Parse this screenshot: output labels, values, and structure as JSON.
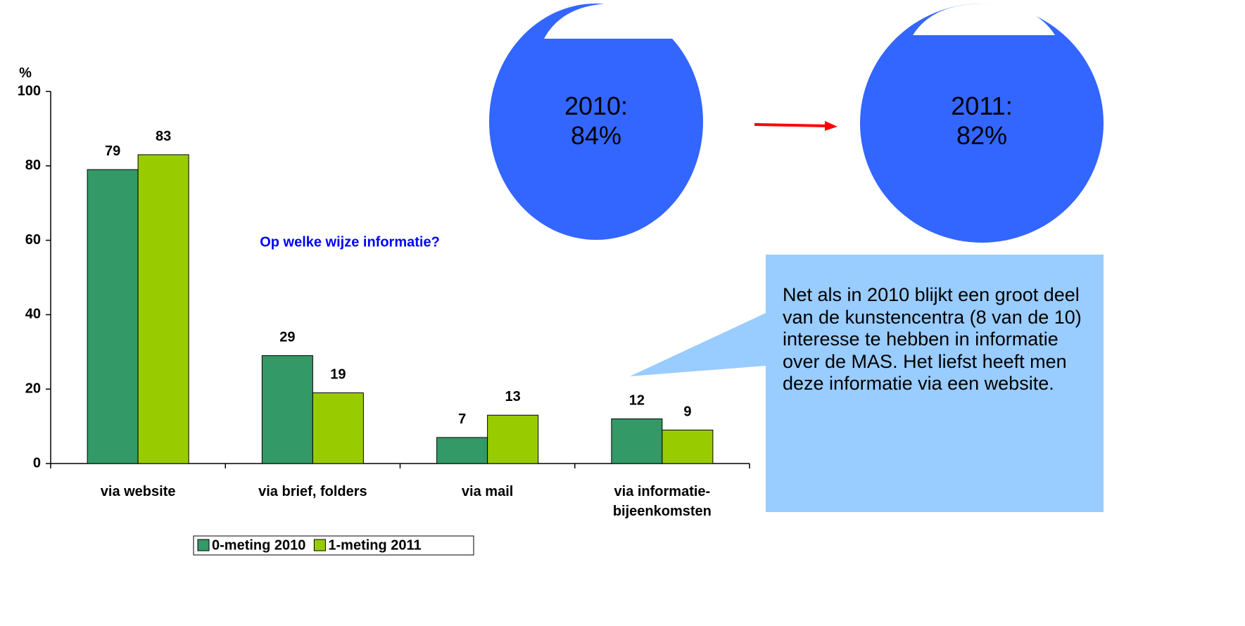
{
  "chart_data": {
    "type": "bar",
    "y_axis_label": "%",
    "annotation": "Op welke wijze informatie?",
    "categories": [
      "via website",
      "via brief, folders",
      "via mail",
      "via informatie-bijeenkomsten"
    ],
    "series": [
      {
        "name": "0-meting 2010",
        "color": "#339966",
        "values": [
          79,
          29,
          7,
          12
        ]
      },
      {
        "name": "1-meting 2011",
        "color": "#99cc00",
        "values": [
          83,
          19,
          13,
          9
        ]
      }
    ],
    "ylim": [
      0,
      100
    ],
    "yticks": [
      0,
      20,
      40,
      60,
      80,
      100
    ],
    "grid": false
  },
  "circles": [
    {
      "year": "2010:",
      "share": "84%"
    },
    {
      "year": "2011:",
      "share": "82%"
    }
  ],
  "callout": "Net als in 2010 blijkt een groot deel van de kunstencentra (8 van de 10) interesse te hebben in informatie over de MAS. Het liefst heeft men deze informatie via een website."
}
